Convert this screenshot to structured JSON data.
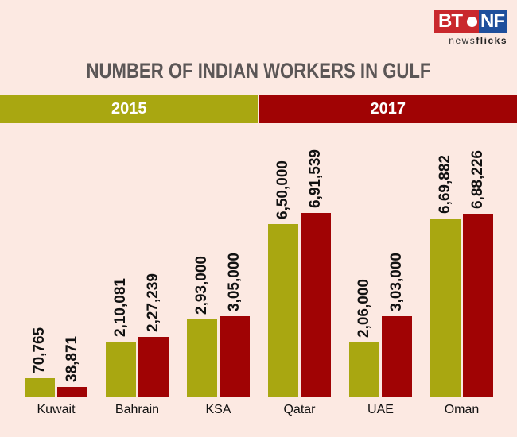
{
  "logo": {
    "left": "BT",
    "right": "NF",
    "sub_prefix": "news",
    "sub_bold": "flicks"
  },
  "title": "NUMBER OF INDIAN WORKERS IN GULF",
  "legend": [
    {
      "label": "2015",
      "color": "#a9a711"
    },
    {
      "label": "2017",
      "color": "#a00304"
    }
  ],
  "chart_data": {
    "type": "bar",
    "title": "NUMBER OF INDIAN WORKERS IN GULF",
    "xlabel": "",
    "ylabel": "",
    "categories": [
      "Kuwait",
      "Bahrain",
      "KSA",
      "Qatar",
      "UAE",
      "Oman"
    ],
    "series": [
      {
        "name": "2015",
        "color": "#a9a711",
        "values": [
          70765,
          210081,
          293000,
          650000,
          206000,
          669882
        ],
        "labels": [
          "70,765",
          "2,10,081",
          "2,93,000",
          "6,50,000",
          "2,06,000",
          "6,69,882"
        ]
      },
      {
        "name": "2017",
        "color": "#a00304",
        "values": [
          38871,
          227239,
          305000,
          691539,
          303000,
          688226
        ],
        "labels": [
          "38,871",
          "2,27,239",
          "3,05,000",
          "6,91,539",
          "3,03,000",
          "6,88,226"
        ]
      }
    ],
    "legend_position": "top",
    "grid": false
  }
}
